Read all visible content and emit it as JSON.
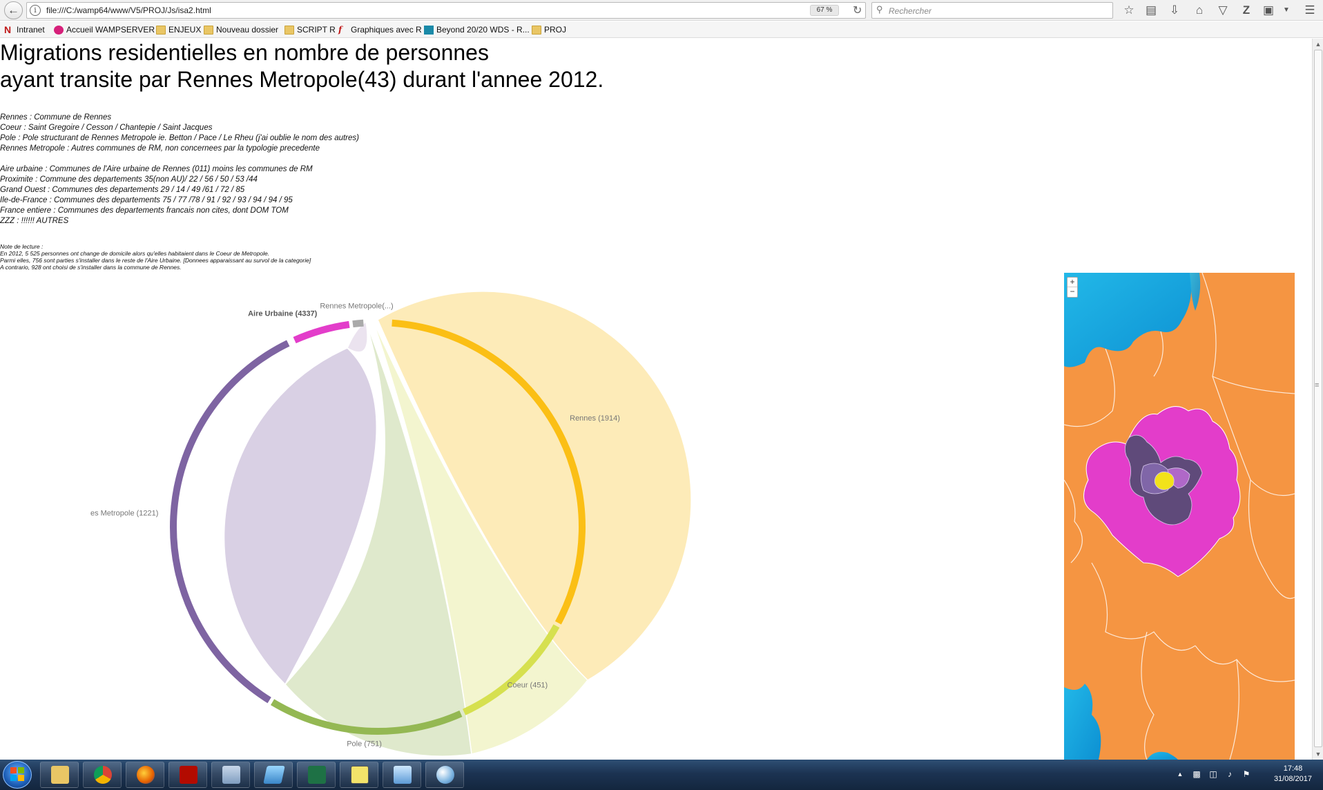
{
  "browser": {
    "url": "file:///C:/wamp64/www/V5/PROJ/Js/isa2.html",
    "zoom": "67 %",
    "search_placeholder": "Rechercher"
  },
  "bookmarks": [
    {
      "label": "Intranet",
      "icon": "intranet-icon"
    },
    {
      "label": "Accueil WAMPSERVER",
      "icon": "wampserver-icon"
    },
    {
      "label": "ENJEUX",
      "icon": "folder-icon"
    },
    {
      "label": "Nouveau dossier",
      "icon": "folder-icon"
    },
    {
      "label": "SCRIPT R",
      "icon": "folder-icon"
    },
    {
      "label": "Graphiques avec R",
      "icon": "rgraph-icon"
    },
    {
      "label": "Beyond 20/20 WDS - R...",
      "icon": "beyond-icon"
    },
    {
      "label": "PROJ",
      "icon": "folder-icon"
    }
  ],
  "page": {
    "title_line1": "Migrations residentielles en nombre de personnes",
    "title_line2": "ayant transite par Rennes Metropole(43) durant l'annee 2012.",
    "legend": [
      "Rennes : Commune de Rennes",
      "Coeur : Saint Gregoire / Cesson / Chantepie / Saint Jacques",
      "Pole : Pole structurant de Rennes Metropole ie. Betton / Pace / Le Rheu (j'ai oublie le nom des autres)",
      "Rennes Metropole : Autres communes de RM, non concernees par la typologie precedente",
      "",
      "Aire urbaine : Communes de l'Aire urbaine de Rennes (011) moins les communes de RM",
      "Proximite : Commune des departements 35(non AU)/ 22 / 56 / 50 / 53 /44",
      "Grand Ouest : Communes des departements 29 / 14 / 49 /61 / 72 / 85",
      "Ile-de-France : Communes des departements 75 / 77 /78 / 91 / 92 / 93 / 94 / 94 / 95",
      "France entiere : Communes des departements francais non cites, dont DOM TOM",
      "ZZZ : !!!!!! AUTRES"
    ],
    "note": [
      "Note de lecture :",
      "En 2012, 5 525 personnes ont change de domicile alors qu'elles habitaient dans le Coeur de Metropole.",
      "Parmi elles, 756 sont parties s'installer dans le reste de l'Aire Urbaine. [Donnees apparaissant au survol de la categorie]",
      "A contrario, 928 ont choisi de s'installer dans la commune de Rennes."
    ]
  },
  "chart_data": {
    "type": "chord",
    "groups": [
      {
        "label": "Rennes (1914)",
        "value": 1914,
        "color": "#fbbf15",
        "fill": "#fdebb8"
      },
      {
        "label": "Coeur (451)",
        "value": 451,
        "color": "#d6e04f",
        "fill": "#f3f5cf"
      },
      {
        "label": "Pole (751)",
        "value": 751,
        "color": "#94b853",
        "fill": "#dfe9cc"
      },
      {
        "label": "es Metropole (1221)",
        "value": 1221,
        "color": "#7e64a2",
        "fill": "#d9d0e4"
      },
      {
        "label": "Aire Urbaine (4337)",
        "value": 4337,
        "color": "#e33dca",
        "fill": "#f5c6ee"
      },
      {
        "label": "Rennes Metropole(...)",
        "value": null,
        "color": "#aaaaaa",
        "fill": "#eeeeee"
      }
    ]
  },
  "map": {
    "zoom_in": "+",
    "zoom_out": "−"
  },
  "taskbar": {
    "time": "17:48",
    "date": "31/08/2017"
  }
}
